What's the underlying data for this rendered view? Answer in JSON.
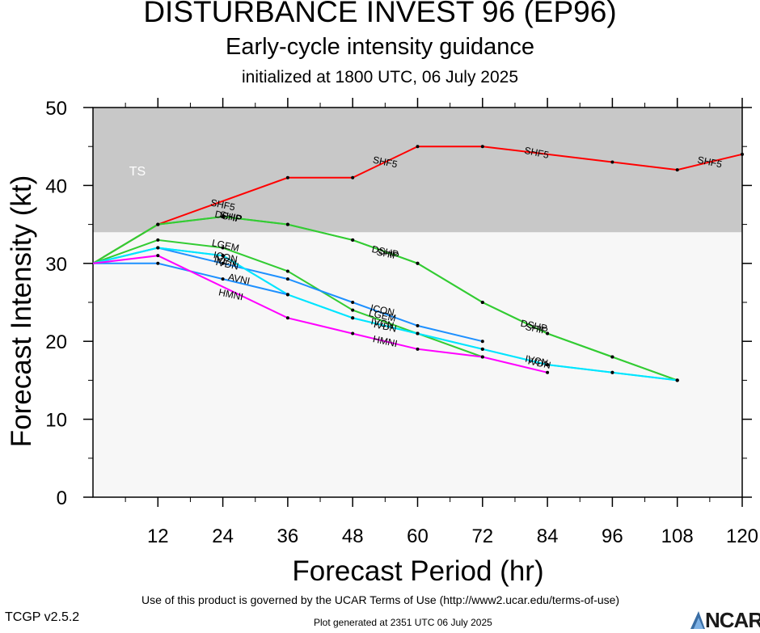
{
  "header": {
    "title": "DISTURBANCE INVEST 96 (EP96)",
    "subtitle": "Early-cycle intensity guidance",
    "initialized": "initialized at 1800 UTC, 06 July 2025"
  },
  "footer": {
    "terms": "Use of this product is governed by the UCAR Terms of Use (http://www2.ucar.edu/terms-of-use)",
    "version": "TCGP v2.5.2",
    "generated": "Plot generated at 2351 UTC   06 July 2025",
    "logo_text": "NCAR"
  },
  "chart_data": {
    "type": "line",
    "xlabel": "Forecast Period (hr)",
    "ylabel": "Forecast Intensity (kt)",
    "xlim": [
      0,
      120
    ],
    "ylim": [
      0,
      50
    ],
    "xticks": [
      12,
      24,
      36,
      48,
      60,
      72,
      84,
      96,
      108,
      120
    ],
    "yticks": [
      0,
      10,
      20,
      30,
      40,
      50
    ],
    "bands": [
      {
        "label": "TS",
        "from": 34,
        "to": 50,
        "color": "#c8c8c8"
      }
    ],
    "plot_background": "#f7f7f7",
    "series": [
      {
        "name": "SHF5",
        "color": "#ff0000",
        "x": [
          0,
          12,
          36,
          48,
          60,
          72,
          96,
          108,
          120
        ],
        "y": [
          30,
          35,
          41,
          41,
          45,
          45,
          43,
          42,
          44
        ],
        "labels": [
          {
            "x": 24,
            "y": 37.5
          },
          {
            "x": 54,
            "y": 43
          },
          {
            "x": 82,
            "y": 44.2
          },
          {
            "x": 114,
            "y": 43
          }
        ]
      },
      {
        "name": "DSHP",
        "color": "#33cc33",
        "x": [
          0,
          12,
          24,
          36,
          48,
          60,
          72,
          84,
          96,
          108
        ],
        "y": [
          30,
          35,
          36,
          35,
          33,
          30,
          25,
          21,
          18,
          15
        ],
        "labels": [
          {
            "x": 25,
            "y": 36
          },
          {
            "x": 54,
            "y": 31.5
          },
          {
            "x": 81.5,
            "y": 22
          }
        ]
      },
      {
        "name": "SHIP",
        "color": "#33cc33",
        "x": [
          0,
          12,
          24,
          36,
          48,
          60,
          72,
          84,
          96,
          108
        ],
        "y": [
          30,
          35,
          36,
          35,
          33,
          30,
          25,
          21,
          18,
          15
        ],
        "labels": [
          {
            "x": 25.5,
            "y": 36
          },
          {
            "x": 54.5,
            "y": 31.2
          },
          {
            "x": 82,
            "y": 21.6
          }
        ]
      },
      {
        "name": "LGEM",
        "color": "#33cc33",
        "x": [
          0,
          12,
          24,
          36,
          48,
          60,
          72
        ],
        "y": [
          30,
          33,
          32,
          29,
          24,
          21,
          18
        ],
        "labels": [
          {
            "x": 24.5,
            "y": 32.3
          },
          {
            "x": 53.5,
            "y": 23.3
          }
        ]
      },
      {
        "name": "ICON",
        "color": "#1e90ff",
        "x": [
          0,
          12,
          24,
          36,
          48,
          60,
          72
        ],
        "y": [
          30,
          32,
          30,
          28,
          25,
          22,
          20
        ],
        "labels": [
          {
            "x": 24.5,
            "y": 30.8
          },
          {
            "x": 53.5,
            "y": 24
          }
        ]
      },
      {
        "name": "IVCN",
        "color": "#00e5ff",
        "x": [
          0,
          12,
          24,
          36,
          48,
          60,
          72,
          84,
          96,
          108
        ],
        "y": [
          30,
          32,
          31,
          26,
          23,
          21,
          19,
          17,
          16,
          15
        ],
        "labels": [
          {
            "x": 24.5,
            "y": 30.3
          },
          {
            "x": 53.5,
            "y": 22.3
          },
          {
            "x": 82,
            "y": 17.5
          }
        ]
      },
      {
        "name": "IVDN",
        "color": "#00e5ff",
        "x": [
          0,
          12,
          24,
          36,
          48,
          60,
          72,
          84,
          96,
          108
        ],
        "y": [
          30,
          32,
          31,
          26,
          23,
          21,
          19,
          17,
          16,
          15
        ],
        "labels": [
          {
            "x": 24.8,
            "y": 29.9
          },
          {
            "x": 54,
            "y": 21.9
          },
          {
            "x": 82.5,
            "y": 17.2
          }
        ]
      },
      {
        "name": "AVNI",
        "color": "#1e90ff",
        "x": [
          0,
          12,
          24,
          36
        ],
        "y": [
          30,
          30,
          28,
          26
        ],
        "labels": [
          {
            "x": 27,
            "y": 28
          }
        ]
      },
      {
        "name": "HMNI",
        "color": "#ff00ff",
        "x": [
          0,
          12,
          36,
          48,
          60,
          72,
          84
        ],
        "y": [
          30,
          31,
          23,
          21,
          19,
          18,
          16
        ],
        "labels": [
          {
            "x": 25.5,
            "y": 26
          },
          {
            "x": 54,
            "y": 20
          }
        ]
      }
    ]
  }
}
